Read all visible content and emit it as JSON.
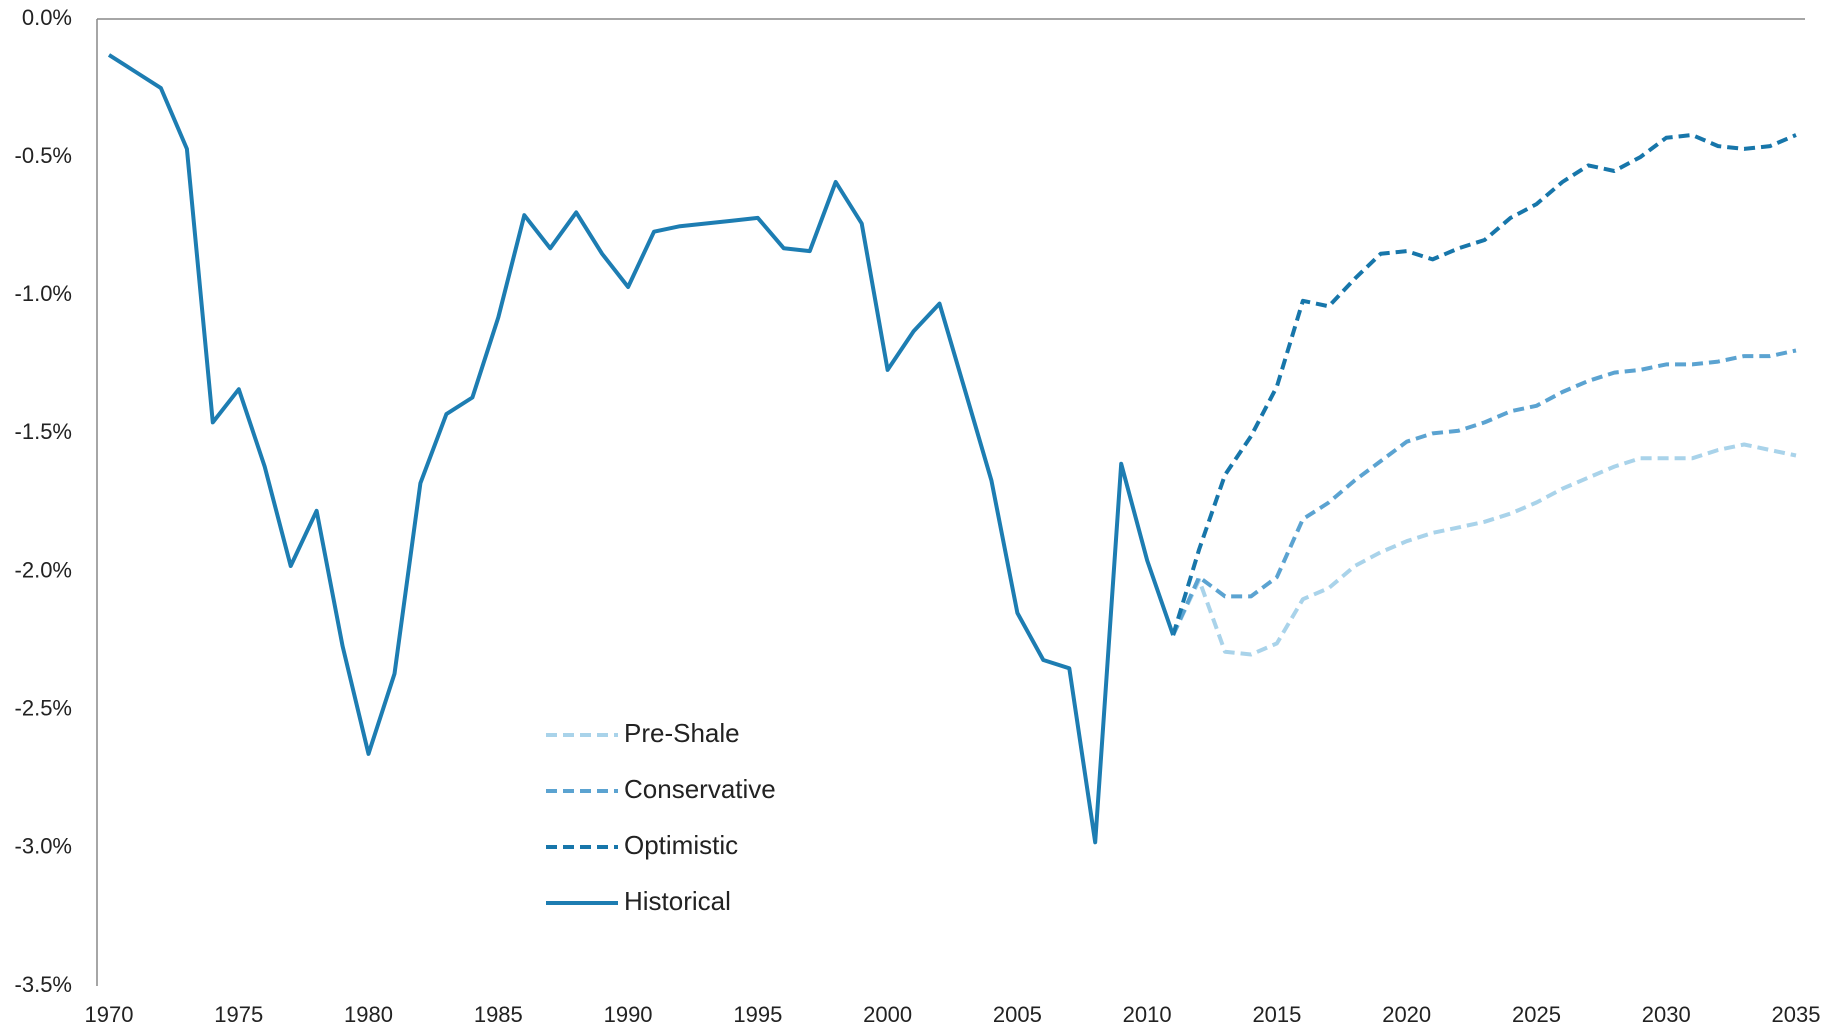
{
  "chart_data": {
    "type": "line",
    "x": [
      1970,
      1971,
      1972,
      1973,
      1974,
      1975,
      1976,
      1977,
      1978,
      1979,
      1980,
      1981,
      1982,
      1983,
      1984,
      1985,
      1986,
      1987,
      1988,
      1989,
      1990,
      1991,
      1992,
      1993,
      1994,
      1995,
      1996,
      1997,
      1998,
      1999,
      2000,
      2001,
      2002,
      2003,
      2004,
      2005,
      2006,
      2007,
      2008,
      2009,
      2010,
      2011,
      2012,
      2013,
      2014,
      2015,
      2016,
      2017,
      2018,
      2019,
      2020,
      2021,
      2022,
      2023,
      2024,
      2025,
      2026,
      2027,
      2028,
      2029,
      2030,
      2031,
      2032,
      2033,
      2034,
      2035
    ],
    "series": [
      {
        "name": "Pre-Shale",
        "color": "#a9d3ea",
        "style": "dashed",
        "values": [
          null,
          null,
          null,
          null,
          null,
          null,
          null,
          null,
          null,
          null,
          null,
          null,
          null,
          null,
          null,
          null,
          null,
          null,
          null,
          null,
          null,
          null,
          null,
          null,
          null,
          null,
          null,
          null,
          null,
          null,
          null,
          null,
          null,
          null,
          null,
          null,
          null,
          null,
          null,
          null,
          null,
          -2.23,
          -2.03,
          -2.29,
          -2.3,
          -2.26,
          -2.1,
          -2.06,
          -1.98,
          -1.93,
          -1.89,
          -1.86,
          -1.84,
          -1.82,
          -1.79,
          -1.75,
          -1.7,
          -1.66,
          -1.62,
          -1.59,
          -1.59,
          -1.59,
          -1.56,
          -1.54,
          -1.56,
          -1.58
        ]
      },
      {
        "name": "Conservative",
        "color": "#5ba3d1",
        "style": "dashed",
        "values": [
          null,
          null,
          null,
          null,
          null,
          null,
          null,
          null,
          null,
          null,
          null,
          null,
          null,
          null,
          null,
          null,
          null,
          null,
          null,
          null,
          null,
          null,
          null,
          null,
          null,
          null,
          null,
          null,
          null,
          null,
          null,
          null,
          null,
          null,
          null,
          null,
          null,
          null,
          null,
          null,
          null,
          -2.23,
          -2.02,
          -2.09,
          -2.09,
          -2.02,
          -1.81,
          -1.75,
          -1.67,
          -1.6,
          -1.53,
          -1.5,
          -1.49,
          -1.46,
          -1.42,
          -1.4,
          -1.35,
          -1.31,
          -1.28,
          -1.27,
          -1.25,
          -1.25,
          -1.24,
          -1.22,
          -1.22,
          -1.2
        ]
      },
      {
        "name": "Optimistic",
        "color": "#1776aa",
        "style": "dashed",
        "values": [
          null,
          null,
          null,
          null,
          null,
          null,
          null,
          null,
          null,
          null,
          null,
          null,
          null,
          null,
          null,
          null,
          null,
          null,
          null,
          null,
          null,
          null,
          null,
          null,
          null,
          null,
          null,
          null,
          null,
          null,
          null,
          null,
          null,
          null,
          null,
          null,
          null,
          null,
          null,
          null,
          null,
          -2.23,
          -1.92,
          -1.65,
          -1.51,
          -1.33,
          -1.02,
          -1.04,
          -0.94,
          -0.85,
          -0.84,
          -0.87,
          -0.83,
          -0.8,
          -0.72,
          -0.67,
          -0.59,
          -0.53,
          -0.55,
          -0.5,
          -0.43,
          -0.42,
          -0.46,
          -0.47,
          -0.46,
          -0.42
        ]
      },
      {
        "name": "Historical",
        "color": "#1d7db2",
        "style": "solid",
        "values": [
          -0.13,
          -0.19,
          -0.25,
          -0.47,
          -1.46,
          -1.34,
          -1.62,
          -1.98,
          -1.78,
          -2.27,
          -2.66,
          -2.37,
          -1.68,
          -1.43,
          -1.37,
          -1.08,
          -0.71,
          -0.83,
          -0.7,
          -0.85,
          -0.97,
          -0.77,
          -0.75,
          -0.74,
          -0.73,
          -0.72,
          -0.83,
          -0.84,
          -0.59,
          -0.74,
          -1.27,
          -1.13,
          -1.03,
          -1.35,
          -1.67,
          -2.15,
          -2.32,
          -2.35,
          -2.98,
          -1.61,
          -1.96,
          -2.23,
          null,
          null,
          null,
          null,
          null,
          null,
          null,
          null,
          null,
          null,
          null,
          null,
          null,
          null,
          null,
          null,
          null,
          null,
          null,
          null,
          null,
          null,
          null,
          null
        ]
      }
    ],
    "xlim": [
      1970,
      2035
    ],
    "xticks": [
      1970,
      1975,
      1980,
      1985,
      1990,
      1995,
      2000,
      2005,
      2010,
      2015,
      2020,
      2025,
      2030,
      2035
    ],
    "ylim": [
      -3.5,
      0
    ],
    "yticks": [
      {
        "value": 0,
        "label": "0.0%"
      },
      {
        "value": -0.5,
        "label": "-0.5%"
      },
      {
        "value": -1,
        "label": "-1.0%"
      },
      {
        "value": -1.5,
        "label": "-1.5%"
      },
      {
        "value": -2,
        "label": "-2.0%"
      },
      {
        "value": -2.5,
        "label": "-2.5%"
      },
      {
        "value": -3,
        "label": "-3.0%"
      },
      {
        "value": -3.5,
        "label": "-3.5%"
      }
    ],
    "grid": false,
    "legend": "lower center"
  }
}
